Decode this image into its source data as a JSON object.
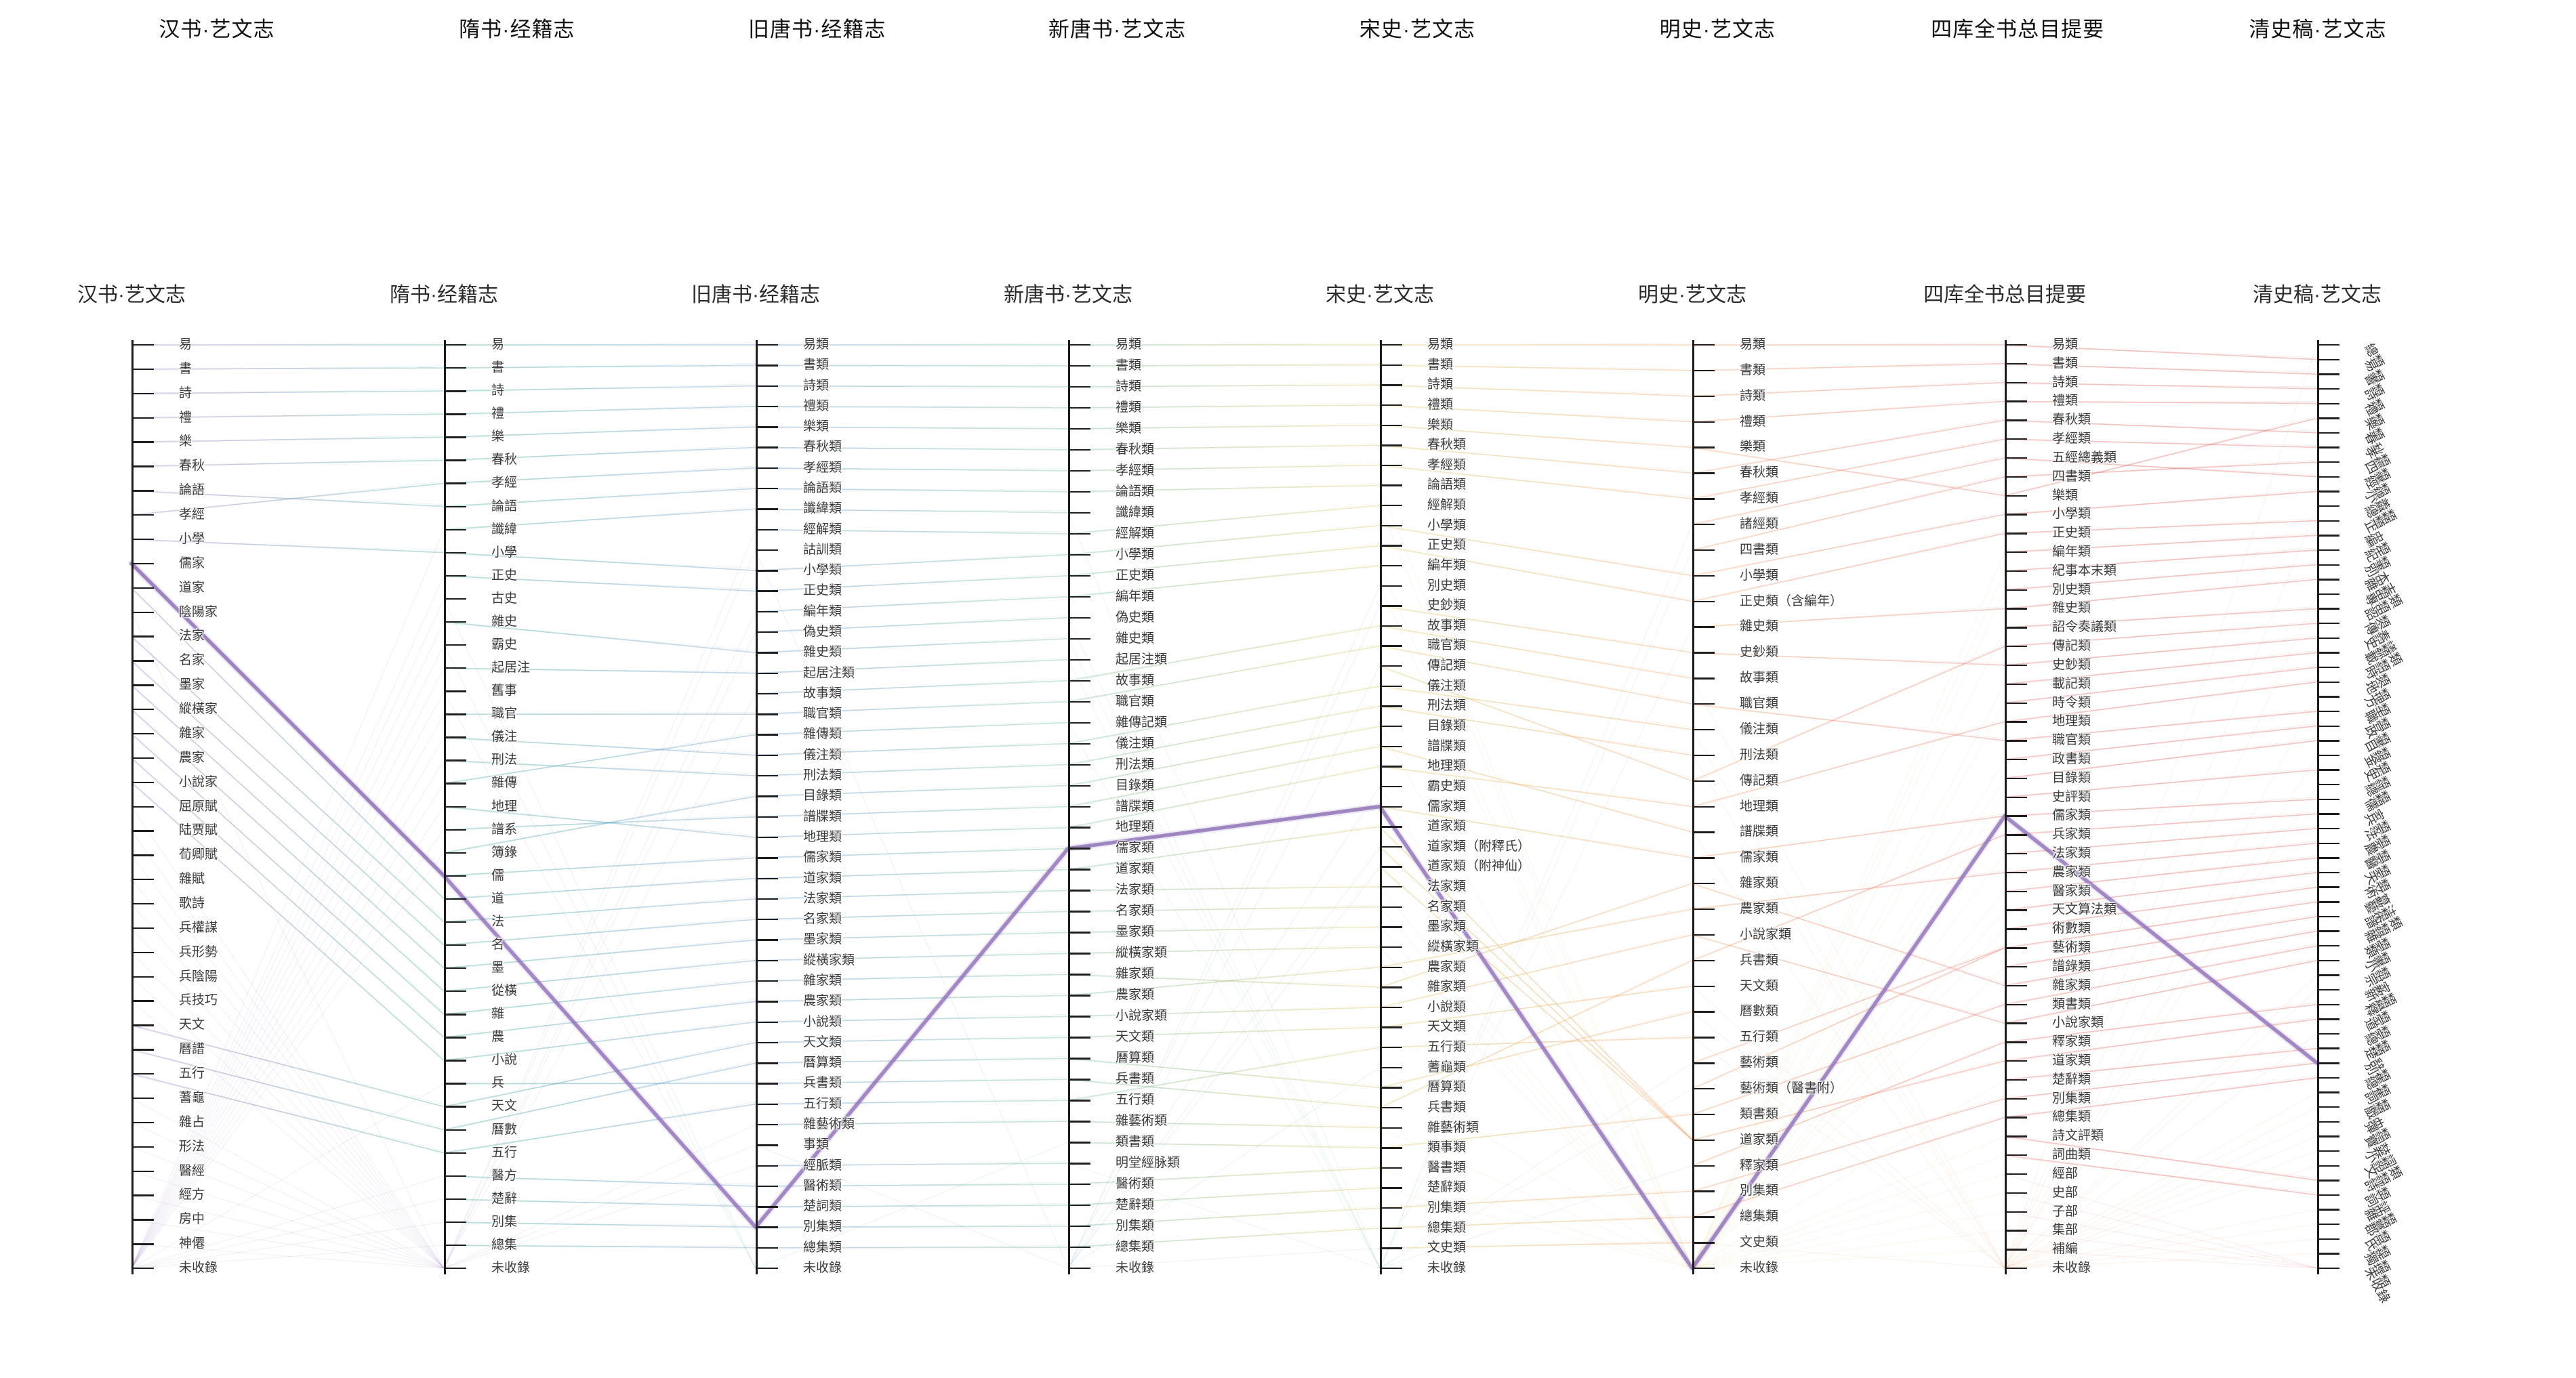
{
  "chart_data": {
    "type": "parallel-categories",
    "title_row_tabs": [
      "汉书·艺文志",
      "隋书·经籍志",
      "旧唐书·经籍志",
      "新唐书·艺文志",
      "宋史·艺文志",
      "明史·艺文志",
      "四库全书总目提要",
      "清史稿·艺文志"
    ],
    "link_rule": "lines connect same-named categories between adjacent catalogs; categories with no counterpart fan into 未收錄 of the neighbouring catalog",
    "highlight": {
      "color": "#8f6fb8",
      "path_labels": [
        "儒家",
        "儒",
        "別集類",
        "儒家類",
        "儒家類",
        "未收錄",
        "儒家類",
        "別集類"
      ],
      "path_indices": [
        9,
        23,
        43,
        24,
        23,
        36,
        25,
        49
      ]
    },
    "columns": [
      {
        "title": "汉书·艺文志",
        "color": "#9467bd",
        "categories": [
          "易",
          "書",
          "詩",
          "禮",
          "樂",
          "春秋",
          "論語",
          "孝經",
          "小學",
          "儒家",
          "道家",
          "陰陽家",
          "法家",
          "名家",
          "墨家",
          "縱橫家",
          "雜家",
          "農家",
          "小說家",
          "屈原賦",
          "陆贾賦",
          "荀卿賦",
          "雜賦",
          "歌詩",
          "兵權謀",
          "兵形勢",
          "兵陰陽",
          "兵技巧",
          "天文",
          "曆譜",
          "五行",
          "蓍龜",
          "雜占",
          "形法",
          "醫經",
          "經方",
          "房中",
          "神僊",
          "未收錄"
        ]
      },
      {
        "title": "隋书·经籍志",
        "color": "#2a9d8f",
        "categories": [
          "易",
          "書",
          "詩",
          "禮",
          "樂",
          "春秋",
          "孝經",
          "論語",
          "讖緯",
          "小學",
          "正史",
          "古史",
          "雜史",
          "霸史",
          "起居注",
          "舊事",
          "職官",
          "儀注",
          "刑法",
          "雜傳",
          "地理",
          "譜系",
          "簿錄",
          "儒",
          "道",
          "法",
          "名",
          "墨",
          "從橫",
          "雜",
          "農",
          "小說",
          "兵",
          "天文",
          "曆數",
          "五行",
          "醫方",
          "楚辭",
          "別集",
          "總集",
          "未收錄"
        ]
      },
      {
        "title": "旧唐书·经籍志",
        "color": "#4e86c6",
        "categories": [
          "易類",
          "書類",
          "詩類",
          "禮類",
          "樂類",
          "春秋類",
          "孝經類",
          "論語類",
          "讖緯類",
          "經解類",
          "詁訓類",
          "小學類",
          "正史類",
          "編年類",
          "偽史類",
          "雜史類",
          "起居注類",
          "故事類",
          "職官類",
          "雜傳類",
          "儀注類",
          "刑法類",
          "目錄類",
          "譜牒類",
          "地理類",
          "儒家類",
          "道家類",
          "法家類",
          "名家類",
          "墨家類",
          "縱橫家類",
          "雜家類",
          "農家類",
          "小說類",
          "天文類",
          "曆算類",
          "兵書類",
          "五行類",
          "雜藝術類",
          "事類",
          "經脈類",
          "醫術類",
          "楚詞類",
          "別集類",
          "總集類",
          "未收錄"
        ]
      },
      {
        "title": "新唐书·艺文志",
        "color": "#56b189",
        "categories": [
          "易類",
          "書類",
          "詩類",
          "禮類",
          "樂類",
          "春秋類",
          "孝經類",
          "論語類",
          "讖緯類",
          "經解類",
          "小學類",
          "正史類",
          "編年類",
          "偽史類",
          "雜史類",
          "起居注類",
          "故事類",
          "職官類",
          "雜傳記類",
          "儀注類",
          "刑法類",
          "目錄類",
          "譜牒類",
          "地理類",
          "儒家類",
          "道家類",
          "法家類",
          "名家類",
          "墨家類",
          "縱橫家類",
          "雜家類",
          "農家類",
          "小說家類",
          "天文類",
          "曆算類",
          "兵書類",
          "五行類",
          "雜藝術類",
          "類書類",
          "明堂經脉類",
          "醫術類",
          "楚辭類",
          "別集類",
          "總集類",
          "未收錄"
        ]
      },
      {
        "title": "宋史·艺文志",
        "color": "#d8bd4a",
        "categories": [
          "易類",
          "書類",
          "詩類",
          "禮類",
          "樂類",
          "春秋類",
          "孝經類",
          "論語類",
          "經解類",
          "小學類",
          "正史類",
          "編年類",
          "別史類",
          "史鈔類",
          "故事類",
          "職官類",
          "傳記類",
          "儀注類",
          "刑法類",
          "目錄類",
          "譜牒類",
          "地理類",
          "霸史類",
          "儒家類",
          "道家類",
          "道家類（附釋氏）",
          "道家類（附神仙）",
          "法家類",
          "名家類",
          "墨家類",
          "縱橫家類",
          "農家類",
          "雜家類",
          "小說類",
          "天文類",
          "五行類",
          "蓍龜類",
          "曆算類",
          "兵書類",
          "雜藝術類",
          "類事類",
          "醫書類",
          "楚辭類",
          "別集類",
          "總集類",
          "文史類",
          "未收錄"
        ]
      },
      {
        "title": "明史·艺文志",
        "color": "#ef9150",
        "categories": [
          "易類",
          "書類",
          "詩類",
          "禮類",
          "樂類",
          "春秋類",
          "孝經類",
          "諸經類",
          "四書類",
          "小學類",
          "正史類（含編年）",
          "雜史類",
          "史鈔類",
          "故事類",
          "職官類",
          "儀注類",
          "刑法類",
          "傳記類",
          "地理類",
          "譜牒類",
          "儒家類",
          "雜家類",
          "農家類",
          "小說家類",
          "兵書類",
          "天文類",
          "曆數類",
          "五行類",
          "藝術類",
          "藝術類（醫書附）",
          "類書類",
          "道家類",
          "釋家類",
          "別集類",
          "總集類",
          "文史類",
          "未收錄"
        ]
      },
      {
        "title": "四库全书总目提要",
        "color": "#e05c55",
        "categories": [
          "易類",
          "書類",
          "詩類",
          "禮類",
          "春秋類",
          "孝經類",
          "五經總義類",
          "四書類",
          "樂類",
          "小學類",
          "正史類",
          "編年類",
          "紀事本末類",
          "別史類",
          "雜史類",
          "詔令奏議類",
          "傳記類",
          "史鈔類",
          "載記類",
          "時令類",
          "地理類",
          "職官類",
          "政書類",
          "目錄類",
          "史評類",
          "儒家類",
          "兵家類",
          "法家類",
          "農家類",
          "醫家類",
          "天文算法類",
          "術數類",
          "藝術類",
          "譜錄類",
          "雜家類",
          "類書類",
          "小說家類",
          "釋家類",
          "道家類",
          "楚辭類",
          "別集類",
          "總集類",
          "詩文評類",
          "詞曲類",
          "經部",
          "史部",
          "子部",
          "集部",
          "補編",
          "未收錄"
        ]
      },
      {
        "title": "清史稿·艺文志",
        "color": "#d94a43",
        "categories": [
          "總類",
          "易類",
          "書類",
          "詩類",
          "禮類",
          "樂類",
          "春秋類",
          "孝經類",
          "四書類",
          "經總義類",
          "小學類",
          "總類",
          "正史類",
          "編年類",
          "紀事本末類",
          "別史類",
          "雜史類",
          "專史類",
          "詔令奏議類",
          "傳記類",
          "史鈔類",
          "載記類",
          "時令類",
          "地理類",
          "方志類",
          "職官類",
          "政書類",
          "目錄類",
          "金石類",
          "史評類",
          "總類",
          "儒家類",
          "兵家類",
          "法家類",
          "農家類",
          "醫家類",
          "天文算法類",
          "術數類",
          "藝術類",
          "譜錄類",
          "雜家類",
          "類書類",
          "小說家類",
          "宗教類",
          "新學類",
          "釋家類",
          "道家類",
          "總類",
          "楚辭類",
          "別集類",
          "總集類",
          "詞類",
          "戲曲類",
          "彈詞鼓詞類",
          "寶卷類",
          "小說類",
          "文評類",
          "詩文評類",
          "詞曲類",
          "雜纂類",
          "郡邑類",
          "氏族類",
          "獨撰類",
          "未收錄"
        ]
      }
    ]
  }
}
